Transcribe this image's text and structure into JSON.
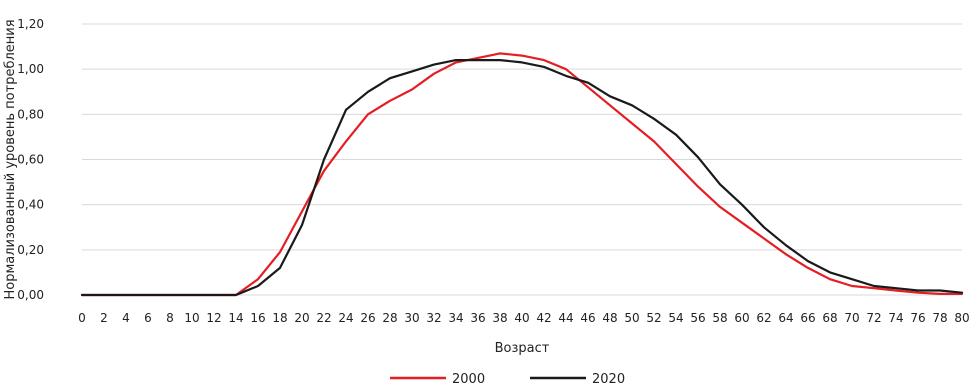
{
  "chart_data": {
    "type": "line",
    "xlabel": "Возраст",
    "ylabel": "Нормализованный уровень потребления",
    "xlim": [
      0,
      80
    ],
    "ylim": [
      0,
      1.2
    ],
    "x_ticks": [
      "0",
      "2",
      "4",
      "6",
      "8",
      "10",
      "12",
      "14",
      "16",
      "18",
      "20",
      "22",
      "24",
      "26",
      "28",
      "30",
      "32",
      "34",
      "36",
      "38",
      "40",
      "42",
      "44",
      "46",
      "48",
      "50",
      "52",
      "54",
      "56",
      "58",
      "60",
      "62",
      "64",
      "66",
      "68",
      "70",
      "72",
      "74",
      "76",
      "78",
      "80"
    ],
    "y_ticks": [
      "0,00",
      "0,20",
      "0,40",
      "0,60",
      "0,80",
      "1,00",
      "1,20"
    ],
    "y_tick_values": [
      0,
      0.2,
      0.4,
      0.6,
      0.8,
      1.0,
      1.2
    ],
    "grid": "horizontal",
    "legend_position": "bottom",
    "x": [
      0,
      2,
      4,
      6,
      8,
      10,
      12,
      14,
      16,
      18,
      20,
      22,
      24,
      26,
      28,
      30,
      32,
      34,
      36,
      38,
      40,
      42,
      44,
      46,
      48,
      50,
      52,
      54,
      56,
      58,
      60,
      62,
      64,
      66,
      68,
      70,
      72,
      74,
      76,
      78,
      80
    ],
    "series": [
      {
        "name": "2000",
        "color": "#e31e24",
        "values": [
          0,
          0,
          0,
          0,
          0,
          0,
          0,
          0,
          0.07,
          0.19,
          0.37,
          0.55,
          0.68,
          0.8,
          0.86,
          0.91,
          0.98,
          1.03,
          1.05,
          1.07,
          1.06,
          1.04,
          1.0,
          0.92,
          0.84,
          0.76,
          0.68,
          0.58,
          0.48,
          0.39,
          0.32,
          0.25,
          0.18,
          0.12,
          0.07,
          0.04,
          0.03,
          0.02,
          0.01,
          0.005,
          0.005
        ]
      },
      {
        "name": "2020",
        "color": "#1a1a1a",
        "values": [
          0,
          0,
          0,
          0,
          0,
          0,
          0,
          0,
          0.04,
          0.12,
          0.31,
          0.6,
          0.82,
          0.9,
          0.96,
          0.99,
          1.02,
          1.04,
          1.04,
          1.04,
          1.03,
          1.01,
          0.97,
          0.94,
          0.88,
          0.84,
          0.78,
          0.71,
          0.61,
          0.49,
          0.4,
          0.3,
          0.22,
          0.15,
          0.1,
          0.07,
          0.04,
          0.03,
          0.02,
          0.02,
          0.01
        ]
      }
    ]
  }
}
